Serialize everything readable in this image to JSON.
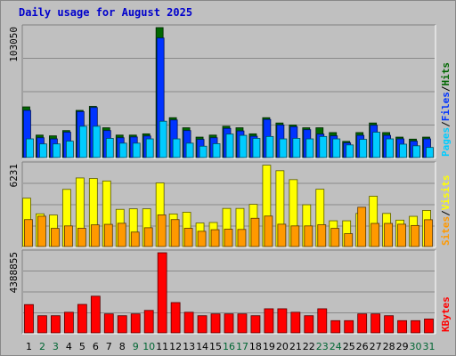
{
  "title": "Daily usage for August 2025",
  "colors": {
    "hits": "#006600",
    "files": "#0033ff",
    "pages": "#00ccff",
    "visits": "#ffff00",
    "sites": "#ff9900",
    "kbytes": "#ff0000",
    "weekend_label": "#006633",
    "weekday_label": "#000000"
  },
  "panels": {
    "top": {
      "max_label": "103050",
      "legend": [
        "Pages",
        "/",
        "Files",
        "/",
        "Hits"
      ]
    },
    "middle": {
      "max_label": "6231",
      "legend": [
        "Sites",
        "/",
        "Visits"
      ]
    },
    "bottom": {
      "max_label": "4388855",
      "legend": [
        "KBytes"
      ]
    }
  },
  "chart_data": {
    "type": "bar",
    "categories": [
      "1",
      "2",
      "3",
      "4",
      "5",
      "6",
      "7",
      "8",
      "9",
      "10",
      "11",
      "12",
      "13",
      "14",
      "15",
      "16",
      "17",
      "18",
      "19",
      "20",
      "21",
      "22",
      "23",
      "24",
      "25",
      "26",
      "27",
      "28",
      "29",
      "30",
      "31"
    ],
    "weekend_days": [
      2,
      3,
      9,
      10,
      16,
      17,
      23,
      24,
      30,
      31
    ],
    "panels": [
      {
        "name": "Hits / Files / Pages",
        "ymax": 103050,
        "series": [
          {
            "name": "Hits",
            "values": [
              40200,
              17800,
              17200,
              21400,
              37400,
              40600,
              23600,
              17800,
              17800,
              18800,
              103050,
              31600,
              23600,
              16200,
              17800,
              24800,
              23600,
              18800,
              31600,
              27400,
              25800,
              23600,
              23600,
              19800,
              12800,
              19800,
              27400,
              19800,
              16200,
              14600,
              16200
            ]
          },
          {
            "name": "Files",
            "values": [
              37400,
              15700,
              14800,
              20100,
              36400,
              39700,
              21400,
              15700,
              16300,
              17100,
              94800,
              29800,
              21400,
              14400,
              15700,
              23100,
              21100,
              16900,
              30200,
              25800,
              24400,
              22100,
              18600,
              17200,
              11600,
              17600,
              25600,
              17600,
              14800,
              13000,
              14800
            ]
          },
          {
            "name": "Pages",
            "values": [
              14800,
              10800,
              10800,
              13000,
              24800,
              24800,
              15200,
              11400,
              11400,
              14800,
              28800,
              14800,
              11400,
              9000,
              11000,
              18600,
              17600,
              15200,
              16700,
              14800,
              15200,
              14800,
              16700,
              14800,
              10000,
              14400,
              20100,
              14800,
              10600,
              9300,
              8000
            ]
          }
        ]
      },
      {
        "name": "Visits / Sites",
        "ymax": 6231,
        "series": [
          {
            "name": "Visits",
            "values": [
              3680,
              2490,
              2400,
              4350,
              5220,
              5180,
              4990,
              2830,
              2870,
              2870,
              4840,
              2480,
              2610,
              1790,
              1830,
              2900,
              2900,
              3210,
              6190,
              5770,
              5090,
              3180,
              4360,
              1960,
              1960,
              2520,
              3830,
              2520,
              2010,
              2300,
              2750
            ]
          },
          {
            "name": "Sites",
            "values": [
              2050,
              2310,
              1380,
              1570,
              1390,
              1650,
              1690,
              1770,
              1100,
              1430,
              2410,
              2050,
              1390,
              1160,
              1280,
              1320,
              1300,
              2150,
              2320,
              1700,
              1570,
              1570,
              1660,
              1380,
              980,
              2990,
              1760,
              1760,
              1700,
              1600,
              2040
            ]
          }
        ]
      },
      {
        "name": "KBytes",
        "ymax": 4388855,
        "series": [
          {
            "name": "KBytes",
            "values": [
              1550000,
              940000,
              940000,
              1130000,
              1560000,
              2010000,
              1040000,
              940000,
              1040000,
              1230000,
              4388855,
              1660000,
              1130000,
              940000,
              1040000,
              1040000,
              1040000,
              940000,
              1320000,
              1320000,
              1130000,
              940000,
              1320000,
              670000,
              670000,
              1040000,
              1040000,
              940000,
              670000,
              670000,
              760000
            ]
          }
        ]
      }
    ]
  }
}
